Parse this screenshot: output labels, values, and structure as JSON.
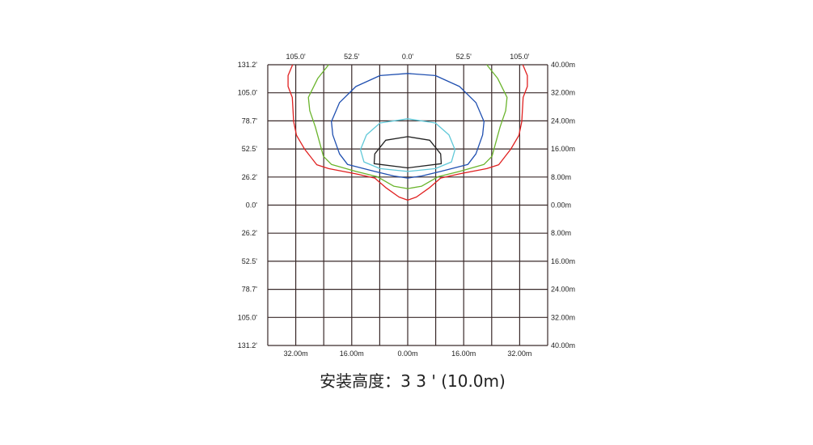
{
  "diagram": {
    "caption": "安装高度：3 3 ' (10.0m)",
    "x_range_m": [
      -40,
      40
    ],
    "y_range_m": [
      -40,
      40
    ],
    "grid_step_m": 8,
    "top_labels": [
      "105.0'",
      "52.5'",
      "0.0'",
      "52.5'",
      "105.0'"
    ],
    "bottom_labels": [
      "32.00m",
      "16.00m",
      "0.00m",
      "16.00m",
      "32.00m"
    ],
    "left_labels": [
      "131.2'",
      "105.0'",
      "78.7'",
      "52.5'",
      "26.2'",
      "0.0'",
      "26.2'",
      "52.5'",
      "78.7'",
      "105.0'",
      "131.2'"
    ],
    "right_labels": [
      "40.00m",
      "32.00m",
      "24.00m",
      "16.00m",
      "8.00m",
      "0.00m",
      "8.00m",
      "16.00m",
      "24.00m",
      "32.00m",
      "40.00m"
    ],
    "contours": [
      {
        "color": "#e02020",
        "symmetric": true,
        "points": [
          [
            -32.9,
            40
          ],
          [
            -34.2,
            36.9
          ],
          [
            -34.2,
            33.8
          ],
          [
            -33.0,
            30.7
          ],
          [
            -32.6,
            23.8
          ],
          [
            -31.8,
            19.9
          ],
          [
            -29.5,
            16.0
          ],
          [
            -26.0,
            11.5
          ],
          [
            -22.6,
            10.4
          ],
          [
            -14.8,
            8.9
          ],
          [
            -9.4,
            7.7
          ],
          [
            -6.3,
            5.0
          ],
          [
            -2.5,
            2.3
          ],
          [
            0,
            1.4
          ]
        ]
      },
      {
        "color": "#6ab42c",
        "symmetric": true,
        "points": [
          [
            -22.6,
            40
          ],
          [
            -25.7,
            36.1
          ],
          [
            -28.4,
            30.7
          ],
          [
            -28.0,
            26.9
          ],
          [
            -26.4,
            22.3
          ],
          [
            -24.1,
            13.9
          ],
          [
            -21.8,
            11.6
          ],
          [
            -14.8,
            9.6
          ],
          [
            -8.7,
            8.1
          ],
          [
            -4.0,
            5.4
          ],
          [
            0,
            4.7
          ]
        ]
      },
      {
        "color": "#1f4fb0",
        "symmetric": true,
        "closed": true,
        "points": [
          [
            0,
            37.5
          ],
          [
            -7.9,
            36.9
          ],
          [
            -14.8,
            33.8
          ],
          [
            -19.5,
            29.2
          ],
          [
            -21.8,
            23.8
          ],
          [
            -21.4,
            20.0
          ],
          [
            -19.5,
            14.6
          ],
          [
            -17.2,
            11.6
          ],
          [
            -9.4,
            9.6
          ],
          [
            -4.0,
            8.3
          ],
          [
            0,
            7.7
          ]
        ]
      },
      {
        "color": "#5fc8d8",
        "symmetric": true,
        "closed": true,
        "points": [
          [
            0,
            24.6
          ],
          [
            -7.9,
            23.4
          ],
          [
            -11.8,
            20.0
          ],
          [
            -13.5,
            15.8
          ],
          [
            -12.5,
            12.3
          ],
          [
            -7.9,
            10.4
          ],
          [
            0,
            9.6
          ]
        ]
      },
      {
        "color": "#222222",
        "symmetric": true,
        "closed": true,
        "points": [
          [
            0,
            19.5
          ],
          [
            -6.3,
            18.5
          ],
          [
            -9.4,
            14.6
          ],
          [
            -9.6,
            11.8
          ],
          [
            0,
            10.6
          ]
        ]
      }
    ]
  }
}
